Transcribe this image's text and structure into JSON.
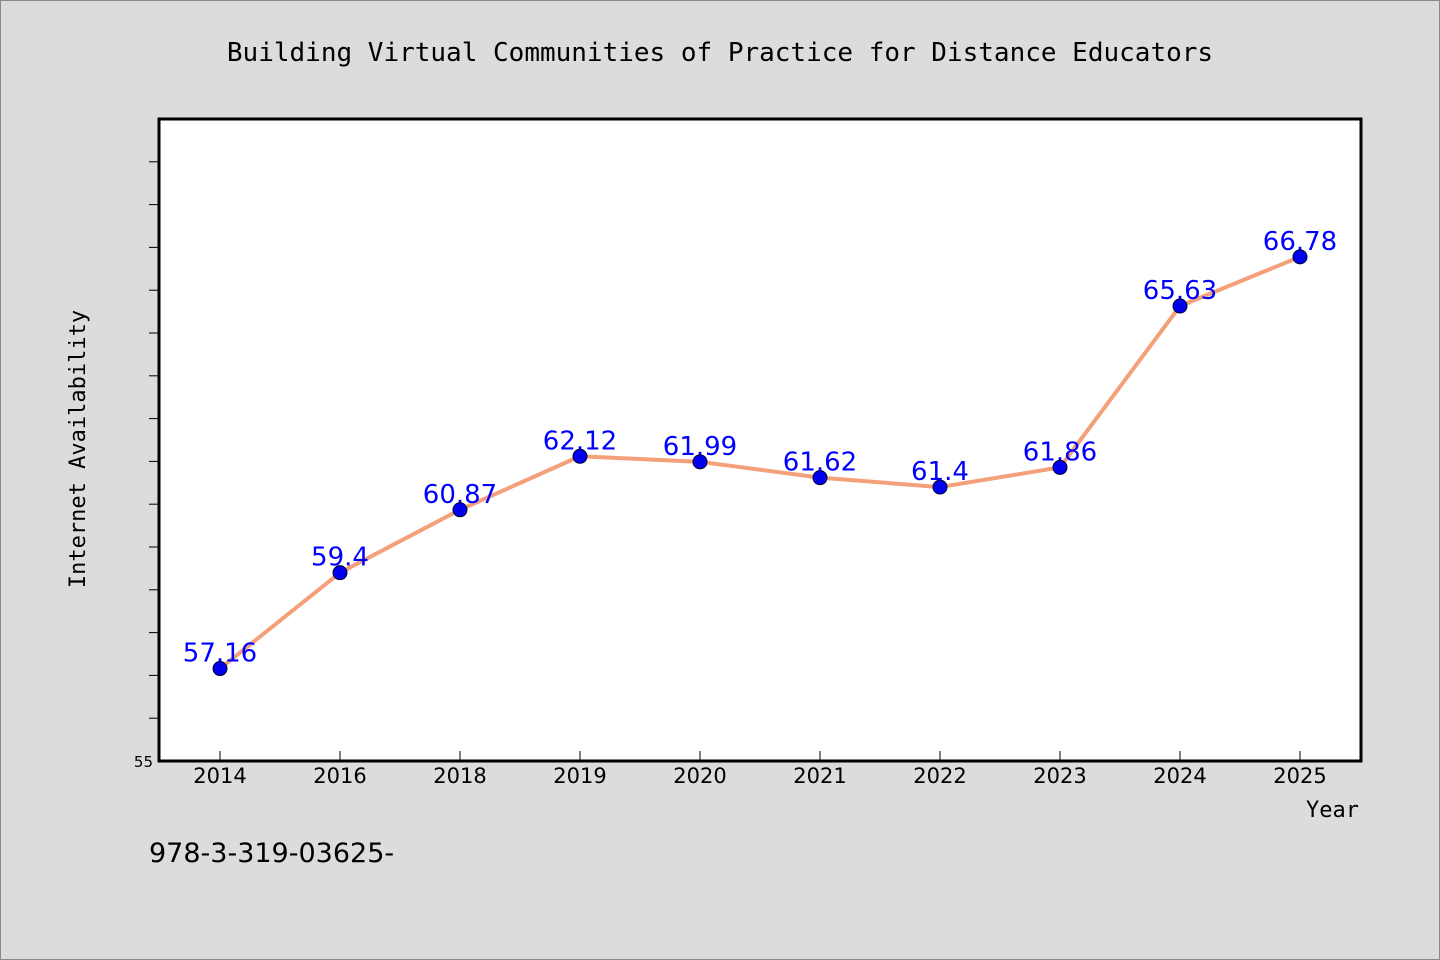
{
  "chart_data": {
    "type": "line",
    "title": "Building Virtual Communities of Practice for Distance Educators",
    "xlabel": "Year",
    "ylabel": "Internet Availability",
    "categories": [
      "2014",
      "2016",
      "2018",
      "2019",
      "2020",
      "2021",
      "2022",
      "2023",
      "2024",
      "2025"
    ],
    "series": [
      {
        "values": [
          57.16,
          59.4,
          60.87,
          62.12,
          61.99,
          61.62,
          61.4,
          61.86,
          65.63,
          66.78
        ],
        "labels": [
          "57.16",
          "59.4",
          "60.87",
          "62.12",
          "61.99",
          "61.62",
          "61.4",
          "61.86",
          "65.63",
          "66.78"
        ],
        "line_color": "#f4a07a",
        "marker_color": "#0000ee"
      }
    ],
    "ylim": [
      55,
      70
    ],
    "ytick_labels": [
      "55"
    ],
    "grid": false,
    "legend": "none"
  },
  "footer": {
    "text": "978-3-319-03625-"
  }
}
